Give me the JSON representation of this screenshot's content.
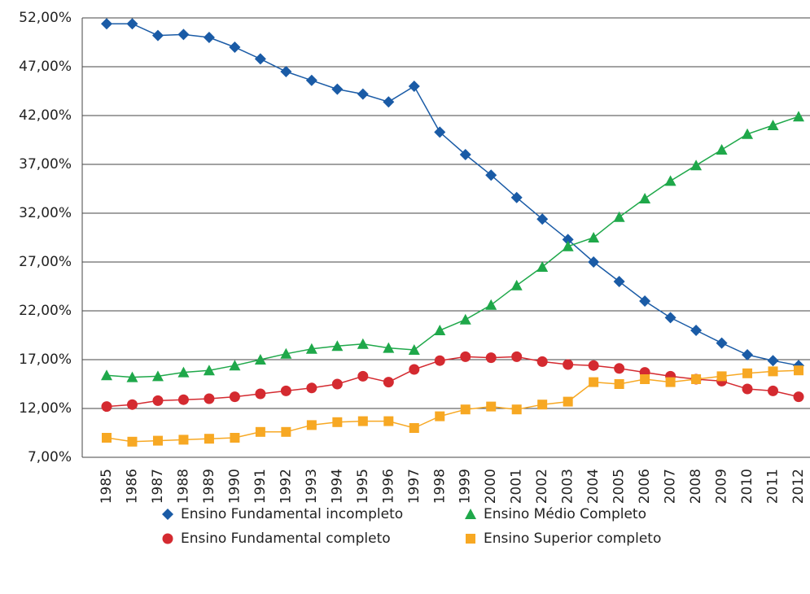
{
  "chart_data": {
    "type": "line",
    "categories": [
      "1985",
      "1986",
      "1987",
      "1988",
      "1989",
      "1990",
      "1991",
      "1992",
      "1993",
      "1994",
      "1995",
      "1996",
      "1997",
      "1998",
      "1999",
      "2000",
      "2001",
      "2002",
      "2003",
      "2004",
      "2005",
      "2006",
      "2007",
      "2008",
      "2009",
      "2010",
      "2011",
      "2012"
    ],
    "series": [
      {
        "name": "Ensino Fundamental incompleto",
        "color": "#1a5ba6",
        "marker": "diamond",
        "values": [
          51.4,
          51.4,
          50.2,
          50.3,
          50.0,
          49.0,
          47.8,
          46.5,
          45.6,
          44.7,
          44.2,
          43.4,
          45.0,
          40.3,
          38.0,
          35.9,
          33.6,
          31.4,
          29.3,
          27.0,
          25.0,
          23.0,
          21.3,
          20.0,
          18.7,
          17.5,
          16.9,
          16.4
        ]
      },
      {
        "name": "Ensino Médio Completo",
        "color": "#1fa84a",
        "marker": "triangle",
        "values": [
          15.4,
          15.2,
          15.3,
          15.7,
          15.9,
          16.4,
          17.0,
          17.6,
          18.1,
          18.4,
          18.6,
          18.2,
          18.0,
          20.0,
          21.1,
          22.6,
          24.6,
          26.5,
          28.6,
          29.5,
          31.6,
          33.5,
          35.3,
          36.9,
          38.5,
          40.1,
          41.0,
          41.9
        ]
      },
      {
        "name": "Ensino Fundamental completo",
        "color": "#d42a30",
        "marker": "circle",
        "values": [
          12.2,
          12.4,
          12.8,
          12.9,
          13.0,
          13.2,
          13.5,
          13.8,
          14.1,
          14.5,
          15.3,
          14.7,
          16.0,
          16.9,
          17.3,
          17.2,
          17.3,
          16.8,
          16.5,
          16.4,
          16.1,
          15.7,
          15.3,
          15.0,
          14.8,
          14.0,
          13.8,
          13.2
        ]
      },
      {
        "name": "Ensino Superior completo",
        "color": "#f7a823",
        "marker": "square",
        "values": [
          9.0,
          8.6,
          8.7,
          8.8,
          8.9,
          9.0,
          9.6,
          9.6,
          10.3,
          10.6,
          10.7,
          10.7,
          10.0,
          11.2,
          11.9,
          12.2,
          11.9,
          12.4,
          12.7,
          14.7,
          14.5,
          15.0,
          14.7,
          15.0,
          15.3,
          15.6,
          15.8,
          15.9
        ]
      }
    ],
    "ylim": [
      7,
      52
    ],
    "yticks": [
      {
        "value": 7,
        "label": "7,00%"
      },
      {
        "value": 12,
        "label": "12,00%"
      },
      {
        "value": 17,
        "label": "17,00%"
      },
      {
        "value": 22,
        "label": "22,00%"
      },
      {
        "value": 27,
        "label": "27,00%"
      },
      {
        "value": 32,
        "label": "32,00%"
      },
      {
        "value": 37,
        "label": "37,00%"
      },
      {
        "value": 42,
        "label": "42,00%"
      },
      {
        "value": 47,
        "label": "47,00%"
      },
      {
        "value": 52,
        "label": "52,00%"
      }
    ],
    "grid": true,
    "legend": "bottom"
  }
}
